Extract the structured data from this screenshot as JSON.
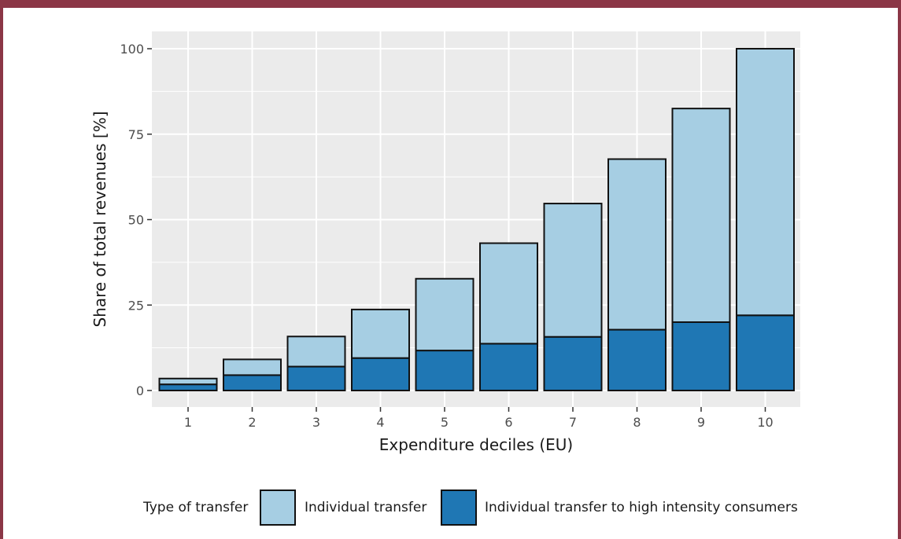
{
  "chart_data": {
    "type": "bar",
    "stacked": true,
    "categories": [
      "1",
      "2",
      "3",
      "4",
      "5",
      "6",
      "7",
      "8",
      "9",
      "10"
    ],
    "series": [
      {
        "name": "Individual transfer to high intensity consumers",
        "color": "#1f77b4",
        "values": [
          1.8,
          4.5,
          7.0,
          9.5,
          11.7,
          13.7,
          15.7,
          17.8,
          20.0,
          22.0
        ]
      },
      {
        "name": "Individual transfer",
        "color": "#a6cee3",
        "values": [
          1.7,
          4.6,
          8.8,
          14.2,
          21.0,
          29.4,
          39.0,
          49.9,
          62.5,
          78.0
        ]
      }
    ],
    "xlabel": "Expenditure deciles (EU)",
    "ylabel": "Share of total revenues [%]",
    "ylim": [
      0,
      100
    ],
    "yticks": [
      0,
      25,
      50,
      75,
      100
    ],
    "grid": true,
    "panel_background": "#ebebeb",
    "legend": {
      "title": "Type of transfer",
      "placement": "bottom"
    }
  }
}
